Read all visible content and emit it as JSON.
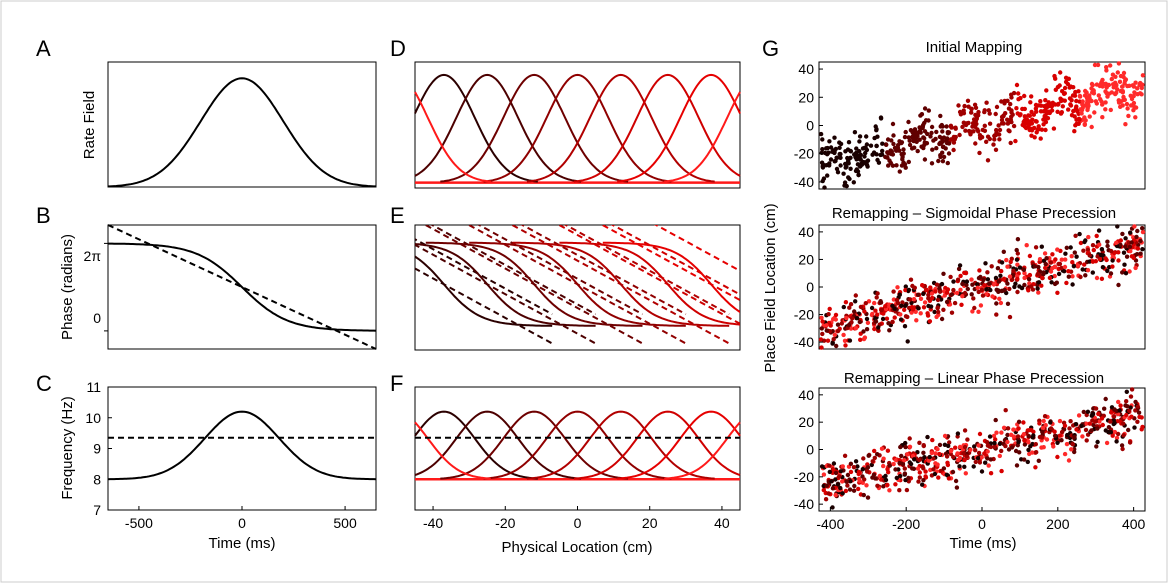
{
  "colors": {
    "black": "#000000",
    "series": [
      "#2b0000",
      "#4d0000",
      "#6e0000",
      "#900000",
      "#b10000",
      "#cf0000",
      "#e60000",
      "#ff1a1a"
    ],
    "scatter": [
      "#1a0000",
      "#600000",
      "#a00000",
      "#d80000",
      "#ff2a2a"
    ]
  },
  "panels": {
    "A": {
      "label": "A",
      "ylabel": "Rate Field"
    },
    "B": {
      "label": "B",
      "ylabel": "Phase (radians)",
      "yticks": [
        "2π",
        "0"
      ]
    },
    "C": {
      "label": "C",
      "ylabel": "Frequency (Hz)",
      "yticks": [
        "11",
        "10",
        "9",
        "8",
        "7"
      ],
      "xticks": [
        "-500",
        "0",
        "500"
      ],
      "xlabel": "Time (ms)"
    },
    "D": {
      "label": "D"
    },
    "E": {
      "label": "E"
    },
    "F": {
      "label": "F",
      "xticks": [
        "-40",
        "-20",
        "0",
        "20",
        "40"
      ],
      "xlabel": "Physical Location (cm)"
    },
    "G": {
      "label": "G",
      "ylabel": "Place Field Location (cm)",
      "xlabel": "Time (ms)",
      "titles": [
        "Initial Mapping",
        "Remapping – Sigmoidal Phase Precession",
        "Remapping – Linear Phase Precession"
      ],
      "yticks": [
        "40",
        "20",
        "0",
        "-20",
        "-40"
      ],
      "xticks": [
        "-400",
        "-200",
        "0",
        "200",
        "400"
      ]
    }
  },
  "chart_data": [
    {
      "type": "line",
      "panel": "A",
      "title": "",
      "xlabel": "",
      "ylabel": "Rate Field",
      "xlim": [
        -650,
        650
      ],
      "series": [
        {
          "x": [
            -600,
            -400,
            -200,
            0,
            200,
            400,
            600
          ],
          "y": [
            0.01,
            0.14,
            0.64,
            1.0,
            0.64,
            0.14,
            0.01
          ]
        }
      ]
    },
    {
      "type": "line",
      "panel": "B",
      "title": "",
      "xlabel": "",
      "ylabel": "Phase (radians)",
      "xlim": [
        -650,
        650
      ],
      "series": [
        {
          "style": "solid",
          "x": [
            -650,
            -400,
            -200,
            0,
            200,
            400,
            650
          ],
          "y": [
            6.28,
            6.2,
            5.2,
            3.14,
            1.1,
            0.1,
            0.0
          ]
        },
        {
          "style": "dashed",
          "x": [
            -650,
            650
          ],
          "y": [
            7.6,
            -1.3
          ]
        }
      ]
    },
    {
      "type": "line",
      "panel": "C",
      "title": "",
      "xlabel": "Time (ms)",
      "ylabel": "Frequency (Hz)",
      "xlim": [
        -650,
        650
      ],
      "ylim": [
        7,
        11
      ],
      "series": [
        {
          "style": "solid",
          "x": [
            -650,
            -400,
            -200,
            0,
            200,
            400,
            650
          ],
          "y": [
            8.0,
            8.3,
            9.4,
            10.2,
            9.4,
            8.3,
            8.0
          ]
        },
        {
          "style": "dashed",
          "x": [
            -650,
            650
          ],
          "y": [
            9.35,
            9.35
          ]
        }
      ]
    },
    {
      "type": "line",
      "panel": "D",
      "xlim": [
        -45,
        45
      ],
      "description_of_series": "rate fields centred at -37,-25,-12,0,12,25,37 cm",
      "centers": [
        -37,
        -25,
        -12,
        0,
        12,
        25,
        37
      ]
    },
    {
      "type": "line",
      "panel": "E",
      "xlim": [
        -45,
        45
      ],
      "centers": [
        -37,
        -25,
        -12,
        0,
        12,
        25,
        37
      ]
    },
    {
      "type": "line",
      "panel": "F",
      "xlabel": "Physical Location (cm)",
      "xlim": [
        -45,
        45
      ],
      "ylim": [
        7,
        11
      ],
      "centers": [
        -37,
        -25,
        -12,
        0,
        12,
        25,
        37
      ],
      "baseline": 8.0,
      "peak": 10.2,
      "dashed_level": 9.35
    },
    {
      "type": "scatter",
      "panel": "G1",
      "title": "Initial Mapping",
      "xlim": [
        -430,
        430
      ],
      "ylim": [
        -45,
        45
      ],
      "trend": [
        [
          -430,
          -30
        ],
        [
          430,
          30
        ]
      ]
    },
    {
      "type": "scatter",
      "panel": "G2",
      "title": "Remapping – Sigmoidal Phase Precession",
      "xlim": [
        -430,
        430
      ],
      "ylim": [
        -45,
        45
      ],
      "trend": [
        [
          -430,
          -30
        ],
        [
          430,
          30
        ]
      ]
    },
    {
      "type": "scatter",
      "panel": "G3",
      "title": "Remapping – Linear Phase Precession",
      "xlim": [
        -430,
        430
      ],
      "ylim": [
        -45,
        45
      ],
      "trend": [
        [
          -430,
          -25
        ],
        [
          430,
          25
        ]
      ]
    }
  ]
}
